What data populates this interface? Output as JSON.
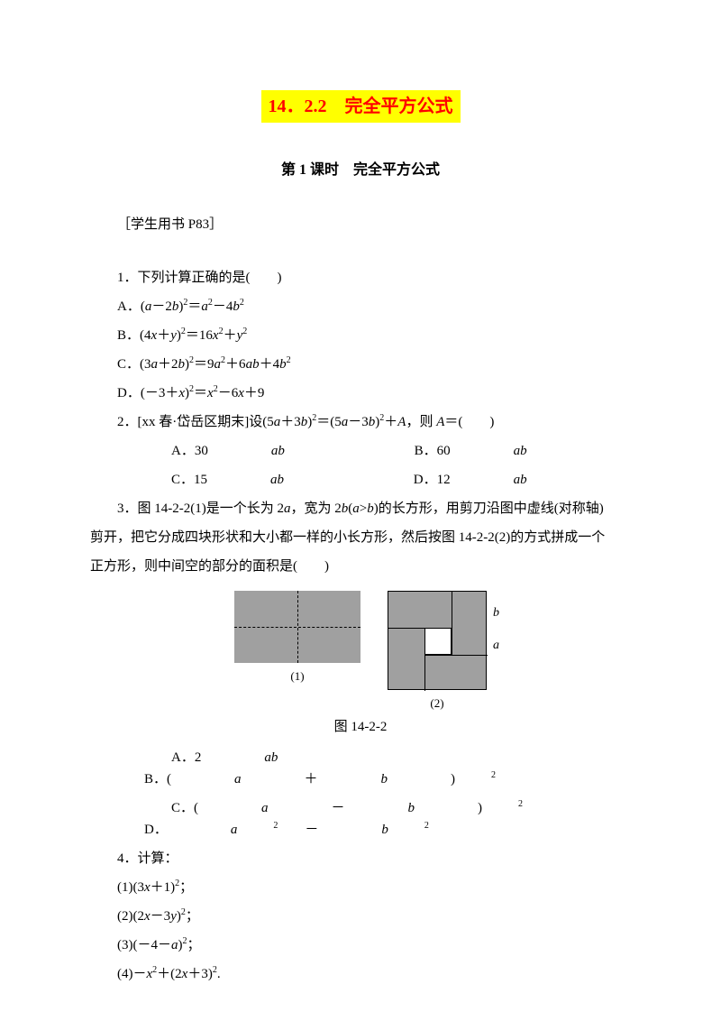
{
  "title_main": "14．2.2　完全平方公式",
  "subtitle": "第 1 课时　完全平方公式",
  "reference": "［学生用书 P83］",
  "q1": {
    "stem": "1．下列计算正确的是(　　)",
    "optA_pre": "A．(",
    "optA_var1": "a",
    "optA_mid1": "－2",
    "optA_var2": "b",
    "optA_mid2": ")",
    "optA_sup1": "2",
    "optA_mid3": "＝",
    "optA_var3": "a",
    "optA_sup2": "2",
    "optA_mid4": "－4",
    "optA_var4": "b",
    "optA_sup3": "2",
    "optB_pre": "B．(4",
    "optB_var1": "x",
    "optB_mid1": "＋",
    "optB_var2": "y",
    "optB_mid2": ")",
    "optB_sup1": "2",
    "optB_mid3": "＝16",
    "optB_var3": "x",
    "optB_sup2": "2",
    "optB_mid4": "＋",
    "optB_var4": "y",
    "optB_sup3": "2",
    "optC_pre": "C．(3",
    "optC_var1": "a",
    "optC_mid1": "＋2",
    "optC_var2": "b",
    "optC_mid2": ")",
    "optC_sup1": "2",
    "optC_mid3": "＝9",
    "optC_var3": "a",
    "optC_sup2": "2",
    "optC_mid4": "＋6",
    "optC_var4": "ab",
    "optC_mid5": "＋4",
    "optC_var5": "b",
    "optC_sup3": "2",
    "optD_pre": "D．(－3＋",
    "optD_var1": "x",
    "optD_mid1": ")",
    "optD_sup1": "2",
    "optD_mid2": "＝",
    "optD_var2": "x",
    "optD_sup2": "2",
    "optD_mid3": "－6",
    "optD_var3": "x",
    "optD_mid4": "＋9"
  },
  "q2": {
    "stem_pre": "2．[xx 春·岱岳区期末]设(5",
    "stem_var1": "a",
    "stem_mid1": "＋3",
    "stem_var2": "b",
    "stem_mid2": ")",
    "stem_sup1": "2",
    "stem_mid3": "＝(5",
    "stem_var3": "a",
    "stem_mid4": "－3",
    "stem_var4": "b",
    "stem_mid5": ")",
    "stem_sup2": "2",
    "stem_mid6": "＋",
    "stem_var5": "A",
    "stem_mid7": "，则 ",
    "stem_var6": "A",
    "stem_end": "＝(　　)",
    "optA_pre": "A．30",
    "optA_var": "ab",
    "optB_pre": "B．60",
    "optB_var": "ab",
    "optC_pre": "C．15",
    "optC_var": "ab",
    "optD_pre": "D．12",
    "optD_var": "ab"
  },
  "q3": {
    "stem_l1_pre": "3．图 14-2-2(1)是一个长为 2",
    "stem_l1_var1": "a",
    "stem_l1_mid1": "，宽为 2",
    "stem_l1_var2": "b",
    "stem_l1_mid2": "(",
    "stem_l1_var3": "a",
    "stem_l1_mid3": ">",
    "stem_l1_var4": "b",
    "stem_l1_end": ")的长方形，用剪刀沿图中虚线(对称轴)",
    "stem_l2": "剪开，把它分成四块形状和大小都一样的小长方形，然后按图 14-2-2(2)的方式拼成一个",
    "stem_l3": "正方形，则中间空的部分的面积是(　　)",
    "fig_label1": "(1)",
    "fig_label2": "(2)",
    "fig_caption": "图 14-2-2",
    "label_a": "a",
    "label_b": "b",
    "optA_pre": "A．2",
    "optA_var": "ab",
    "optB_pre": "B．(",
    "optB_var1": "a",
    "optB_mid": "＋",
    "optB_var2": "b",
    "optB_end": ")",
    "optB_sup": "2",
    "optC_pre": "C．(",
    "optC_var1": "a",
    "optC_mid": "－",
    "optC_var2": "b",
    "optC_end": ")",
    "optC_sup": "2",
    "optD_pre": "D．",
    "optD_var1": "a",
    "optD_sup1": "2",
    "optD_mid": "－",
    "optD_var2": "b",
    "optD_sup2": "2"
  },
  "q4": {
    "stem": "4．计算：",
    "s1_pre": "(1)(3",
    "s1_var": "x",
    "s1_mid": "＋1)",
    "s1_sup": "2",
    "s1_end": "；",
    "s2_pre": "(2)(2",
    "s2_var1": "x",
    "s2_mid1": "－3",
    "s2_var2": "y",
    "s2_mid2": ")",
    "s2_sup": "2",
    "s2_end": "；",
    "s3_pre": "(3)(－4－",
    "s3_var": "a",
    "s3_mid": ")",
    "s3_sup": "2",
    "s3_end": "；",
    "s4_pre": "(4)－",
    "s4_var1": "x",
    "s4_sup1": "2",
    "s4_mid1": "＋(2",
    "s4_var2": "x",
    "s4_mid2": "＋3)",
    "s4_sup2": "2",
    "s4_end": "."
  },
  "colors": {
    "title_fg": "#ff0000",
    "title_bg": "#ffff00",
    "text": "#000000",
    "bg": "#ffffff",
    "figure_fill": "#a0a0a0"
  }
}
